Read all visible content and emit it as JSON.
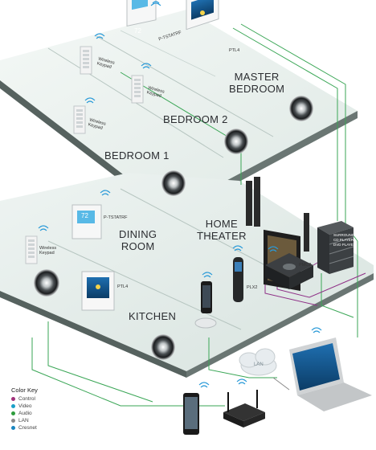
{
  "rooms": {
    "master_bedroom": [
      "MASTER",
      "BEDROOM"
    ],
    "bedroom2": "BEDROOM 2",
    "bedroom1": "BEDROOM 1",
    "home_theater": [
      "HOME",
      "THEATER"
    ],
    "dining_room": [
      "DINING",
      "ROOM"
    ],
    "kitchen": "KITCHEN"
  },
  "devices": {
    "tstat_upper": "P-TSTATRF",
    "tpl_upper": "PTL4",
    "keypad_upper_1": [
      "Wireless",
      "Keypad"
    ],
    "keypad_upper_2": [
      "Wireless",
      "Keypad"
    ],
    "keypad_upper_3": [
      "Wireless",
      "Keypad"
    ],
    "tstat_lower": "P-TSTATRF",
    "keypad_lower": [
      "Wireless",
      "Keypad"
    ],
    "tpl_lower": "PTL4",
    "pmc": "PMC2",
    "plx": "PLX2",
    "stack": [
      "",
      "SURROUND",
      "CD PLAYER",
      "DVD PLAYER"
    ],
    "lan": "LAN",
    "thermostat_reading": "72"
  },
  "color_key": {
    "title": "Color Key",
    "items": [
      {
        "label": "Control",
        "color": "#a0307a"
      },
      {
        "label": "Video",
        "color": "#1aa0c8"
      },
      {
        "label": "Audio",
        "color": "#2e9c3c"
      },
      {
        "label": "LAN",
        "color": "#8a8a8a"
      },
      {
        "label": "Cresnet",
        "color": "#1a86c0"
      }
    ]
  },
  "colors": {
    "floor_top": "#e9f2ee",
    "floor_edge": "#4f5d59",
    "wall": "#b9c3c0",
    "wire_green": "#3aa656",
    "wire_purple": "#8e2f86",
    "wifi_blue": "#2a9ad8"
  }
}
